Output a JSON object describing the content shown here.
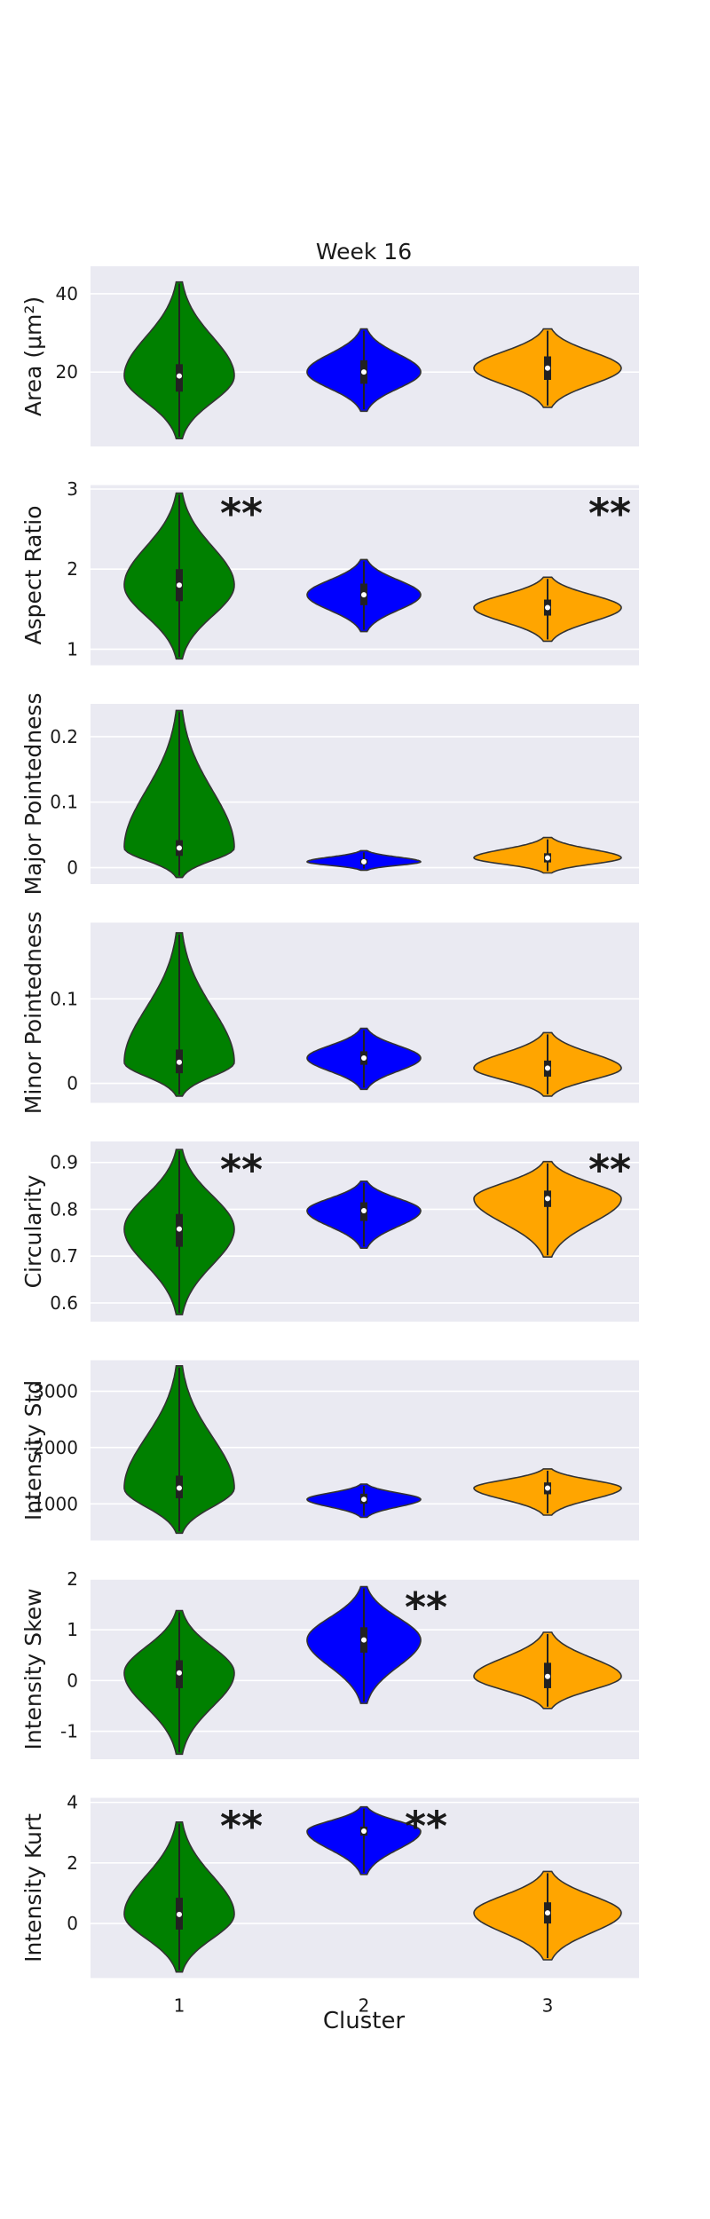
{
  "figure": {
    "title": "Week 16",
    "xlabel": "Cluster",
    "categories": [
      "1",
      "2",
      "3"
    ],
    "colors": {
      "1": "#008000",
      "2": "#0000ff",
      "3": "#ffa500"
    },
    "panel_background": "#eaeaf2",
    "grid": true,
    "significance_marker": "**"
  },
  "chart_data": [
    {
      "type": "violin",
      "ylabel": "Area (μm²)",
      "ylim": [
        1,
        47
      ],
      "yticks": [
        20,
        40
      ],
      "series": [
        {
          "name": "1",
          "min": 3,
          "max": 43,
          "median": 19,
          "q1": 15,
          "q3": 22
        },
        {
          "name": "2",
          "min": 10,
          "max": 31,
          "median": 20,
          "q1": 17,
          "q3": 23
        },
        {
          "name": "3",
          "min": 11,
          "max": 31,
          "median": 21,
          "q1": 18,
          "q3": 24
        }
      ],
      "significant": []
    },
    {
      "type": "violin",
      "ylabel": "Aspect Ratio",
      "ylim": [
        0.8,
        3.05
      ],
      "yticks": [
        1,
        2,
        3
      ],
      "series": [
        {
          "name": "1",
          "min": 0.88,
          "max": 2.95,
          "median": 1.8,
          "q1": 1.6,
          "q3": 2.0
        },
        {
          "name": "2",
          "min": 1.22,
          "max": 2.12,
          "median": 1.68,
          "q1": 1.55,
          "q3": 1.82
        },
        {
          "name": "3",
          "min": 1.1,
          "max": 1.9,
          "median": 1.52,
          "q1": 1.42,
          "q3": 1.62
        }
      ],
      "significant": [
        "1",
        "3"
      ]
    },
    {
      "type": "violin",
      "ylabel": "Major Pointedness",
      "ylim": [
        -0.025,
        0.25
      ],
      "yticks": [
        0.0,
        0.1,
        0.2
      ],
      "series": [
        {
          "name": "1",
          "min": -0.015,
          "max": 0.24,
          "median": 0.03,
          "q1": 0.018,
          "q3": 0.042
        },
        {
          "name": "2",
          "min": -0.004,
          "max": 0.026,
          "median": 0.009,
          "q1": 0.005,
          "q3": 0.013
        },
        {
          "name": "3",
          "min": -0.008,
          "max": 0.046,
          "median": 0.015,
          "q1": 0.008,
          "q3": 0.022
        }
      ],
      "significant": []
    },
    {
      "type": "violin",
      "ylabel": "Minor Pointedness",
      "ylim": [
        -0.023,
        0.19
      ],
      "yticks": [
        0.0,
        0.1
      ],
      "series": [
        {
          "name": "1",
          "min": -0.015,
          "max": 0.178,
          "median": 0.025,
          "q1": 0.012,
          "q3": 0.04
        },
        {
          "name": "2",
          "min": -0.007,
          "max": 0.065,
          "median": 0.03,
          "q1": 0.022,
          "q3": 0.038
        },
        {
          "name": "3",
          "min": -0.015,
          "max": 0.06,
          "median": 0.018,
          "q1": 0.008,
          "q3": 0.027
        }
      ],
      "significant": []
    },
    {
      "type": "violin",
      "ylabel": "Circularity",
      "ylim": [
        0.56,
        0.945
      ],
      "yticks": [
        0.6,
        0.7,
        0.8,
        0.9
      ],
      "series": [
        {
          "name": "1",
          "min": 0.575,
          "max": 0.928,
          "median": 0.758,
          "q1": 0.72,
          "q3": 0.79
        },
        {
          "name": "2",
          "min": 0.717,
          "max": 0.86,
          "median": 0.797,
          "q1": 0.775,
          "q3": 0.815
        },
        {
          "name": "3",
          "min": 0.698,
          "max": 0.902,
          "median": 0.823,
          "q1": 0.805,
          "q3": 0.84
        }
      ],
      "significant": [
        "1",
        "3"
      ]
    },
    {
      "type": "violin",
      "ylabel": "Intensity Std",
      "ylim": [
        350,
        3550
      ],
      "yticks": [
        1000,
        2000,
        3000
      ],
      "series": [
        {
          "name": "1",
          "min": 480,
          "max": 3450,
          "median": 1280,
          "q1": 1100,
          "q3": 1500
        },
        {
          "name": "2",
          "min": 760,
          "max": 1350,
          "median": 1080,
          "q1": 1000,
          "q3": 1180
        },
        {
          "name": "3",
          "min": 800,
          "max": 1620,
          "median": 1280,
          "q1": 1170,
          "q3": 1380
        }
      ],
      "significant": []
    },
    {
      "type": "violin",
      "ylabel": "Intensity Skew",
      "ylim": [
        -1.55,
        2.0
      ],
      "yticks": [
        -1,
        0,
        1,
        2
      ],
      "series": [
        {
          "name": "1",
          "min": -1.45,
          "max": 1.38,
          "median": 0.15,
          "q1": -0.15,
          "q3": 0.4
        },
        {
          "name": "2",
          "min": -0.45,
          "max": 1.85,
          "median": 0.8,
          "q1": 0.55,
          "q3": 1.05
        },
        {
          "name": "3",
          "min": -0.55,
          "max": 0.95,
          "median": 0.08,
          "q1": -0.15,
          "q3": 0.35
        }
      ],
      "significant": [
        "2"
      ]
    },
    {
      "type": "violin",
      "ylabel": "Intensity Kurt",
      "ylim": [
        -1.8,
        4.15
      ],
      "yticks": [
        0,
        2,
        4
      ],
      "series": [
        {
          "name": "1",
          "min": -1.6,
          "max": 3.35,
          "median": 0.3,
          "q1": -0.2,
          "q3": 0.85
        },
        {
          "name": "2",
          "min": 1.62,
          "max": 3.85,
          "median": 3.05,
          "q1": 2.9,
          "q3": 3.2
        },
        {
          "name": "3",
          "min": -1.2,
          "max": 1.72,
          "median": 0.35,
          "q1": 0.0,
          "q3": 0.7
        }
      ],
      "significant": [
        "1",
        "2"
      ]
    }
  ]
}
